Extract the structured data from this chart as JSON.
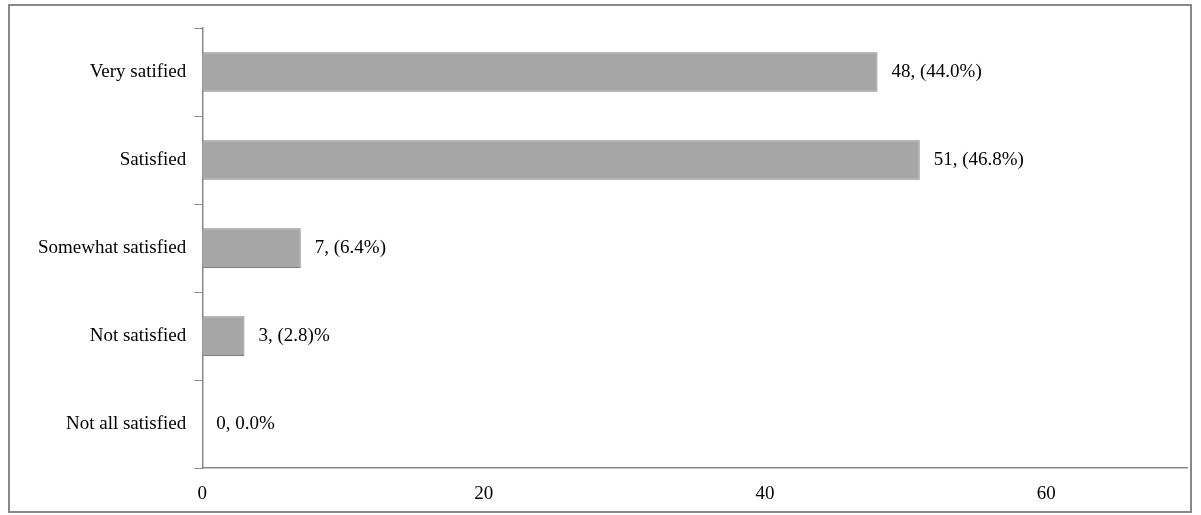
{
  "chart_data": {
    "type": "bar",
    "orientation": "horizontal",
    "categories": [
      "Very satified",
      "Satisfied",
      "Somewhat satisfied",
      "Not satisfied",
      "Not all satisfied"
    ],
    "values": [
      48,
      51,
      7,
      3,
      0
    ],
    "value_labels": [
      "48, (44.0%)",
      "51, (46.8%)",
      "7, (6.4%)",
      "3, (2.8)%",
      "0, 0.0%"
    ],
    "color": "#a6a6a6",
    "xlim": [
      0,
      70
    ],
    "xticks": [
      0,
      20,
      40,
      60
    ],
    "grid": false
  }
}
